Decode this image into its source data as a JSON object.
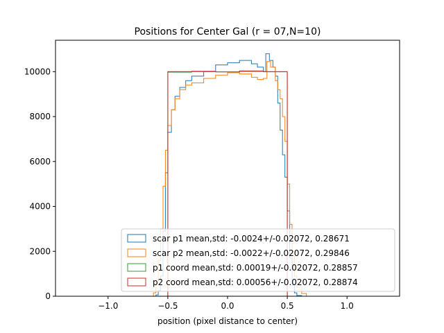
{
  "chart_data": {
    "type": "step-histogram",
    "title": "Positions for Center Gal (r = 07,N=10)",
    "xlabel": "position (pixel distance to center)",
    "ylabel": "",
    "xlim": [
      -1.44,
      1.44
    ],
    "ylim": [
      0,
      11400
    ],
    "xticks": [
      -1.0,
      -0.5,
      0.0,
      0.5,
      1.0
    ],
    "xtick_labels": [
      "−1.0",
      "−0.5",
      "0.0",
      "0.5",
      "1.0"
    ],
    "yticks": [
      0,
      2000,
      4000,
      6000,
      8000,
      10000
    ],
    "ytick_labels": [
      "0",
      "2000",
      "4000",
      "6000",
      "8000",
      "10000"
    ],
    "grid": false,
    "legend_position": "lower right",
    "series": [
      {
        "name": "scar p1 mean,std: -0.0024+/-0.02072, 0.28671",
        "color": "#1f77b4",
        "points": [
          [
            -0.62,
            0
          ],
          [
            -0.6,
            60
          ],
          [
            -0.58,
            250
          ],
          [
            -0.56,
            900
          ],
          [
            -0.54,
            2900
          ],
          [
            -0.52,
            5500
          ],
          [
            -0.5,
            7300
          ],
          [
            -0.47,
            8300
          ],
          [
            -0.44,
            8900
          ],
          [
            -0.4,
            9300
          ],
          [
            -0.35,
            9600
          ],
          [
            -0.3,
            9800
          ],
          [
            -0.2,
            10000
          ],
          [
            -0.1,
            10300
          ],
          [
            0.0,
            10400
          ],
          [
            0.1,
            10500
          ],
          [
            0.2,
            10350
          ],
          [
            0.25,
            10200
          ],
          [
            0.3,
            10000
          ],
          [
            0.32,
            10800
          ],
          [
            0.35,
            10500
          ],
          [
            0.38,
            10200
          ],
          [
            0.4,
            9800
          ],
          [
            0.42,
            8600
          ],
          [
            0.44,
            7400
          ],
          [
            0.46,
            6300
          ],
          [
            0.48,
            5300
          ],
          [
            0.5,
            3800
          ],
          [
            0.52,
            1700
          ],
          [
            0.54,
            500
          ],
          [
            0.56,
            150
          ],
          [
            0.58,
            30
          ],
          [
            0.62,
            0
          ]
        ]
      },
      {
        "name": "scar p2 mean,std: -0.0022+/-0.02072, 0.29846",
        "color": "#ff7f0e",
        "points": [
          [
            -0.66,
            0
          ],
          [
            -0.62,
            150
          ],
          [
            -0.6,
            600
          ],
          [
            -0.58,
            1600
          ],
          [
            -0.56,
            3000
          ],
          [
            -0.54,
            4900
          ],
          [
            -0.52,
            6500
          ],
          [
            -0.5,
            7600
          ],
          [
            -0.47,
            8300
          ],
          [
            -0.44,
            8800
          ],
          [
            -0.4,
            9200
          ],
          [
            -0.35,
            9400
          ],
          [
            -0.3,
            9500
          ],
          [
            -0.2,
            9700
          ],
          [
            -0.1,
            9850
          ],
          [
            0.0,
            9950
          ],
          [
            0.1,
            9900
          ],
          [
            0.2,
            9750
          ],
          [
            0.25,
            9650
          ],
          [
            0.3,
            9700
          ],
          [
            0.33,
            10450
          ],
          [
            0.36,
            10200
          ],
          [
            0.4,
            9600
          ],
          [
            0.42,
            9200
          ],
          [
            0.44,
            8800
          ],
          [
            0.46,
            8000
          ],
          [
            0.48,
            6900
          ],
          [
            0.5,
            5000
          ],
          [
            0.52,
            3200
          ],
          [
            0.54,
            1800
          ],
          [
            0.56,
            900
          ],
          [
            0.58,
            400
          ],
          [
            0.62,
            120
          ],
          [
            0.66,
            0
          ]
        ]
      },
      {
        "name": "p1 coord mean,std: 0.00019+/-0.02072, 0.28857",
        "color": "#2ca02c",
        "points": [
          [
            -0.5,
            0
          ],
          [
            -0.5,
            9980
          ],
          [
            -0.3,
            10000
          ],
          [
            -0.1,
            9990
          ],
          [
            0.1,
            10010
          ],
          [
            0.3,
            9995
          ],
          [
            0.5,
            10000
          ],
          [
            0.5,
            0
          ]
        ]
      },
      {
        "name": "p2 coord mean,std: 0.00056+/-0.02072, 0.28874",
        "color": "#d62728",
        "points": [
          [
            -0.5,
            0
          ],
          [
            -0.5,
            10000
          ],
          [
            -0.3,
            10020
          ],
          [
            -0.1,
            9990
          ],
          [
            0.1,
            10030
          ],
          [
            0.3,
            10000
          ],
          [
            0.5,
            10010
          ],
          [
            0.5,
            0
          ]
        ]
      }
    ]
  }
}
